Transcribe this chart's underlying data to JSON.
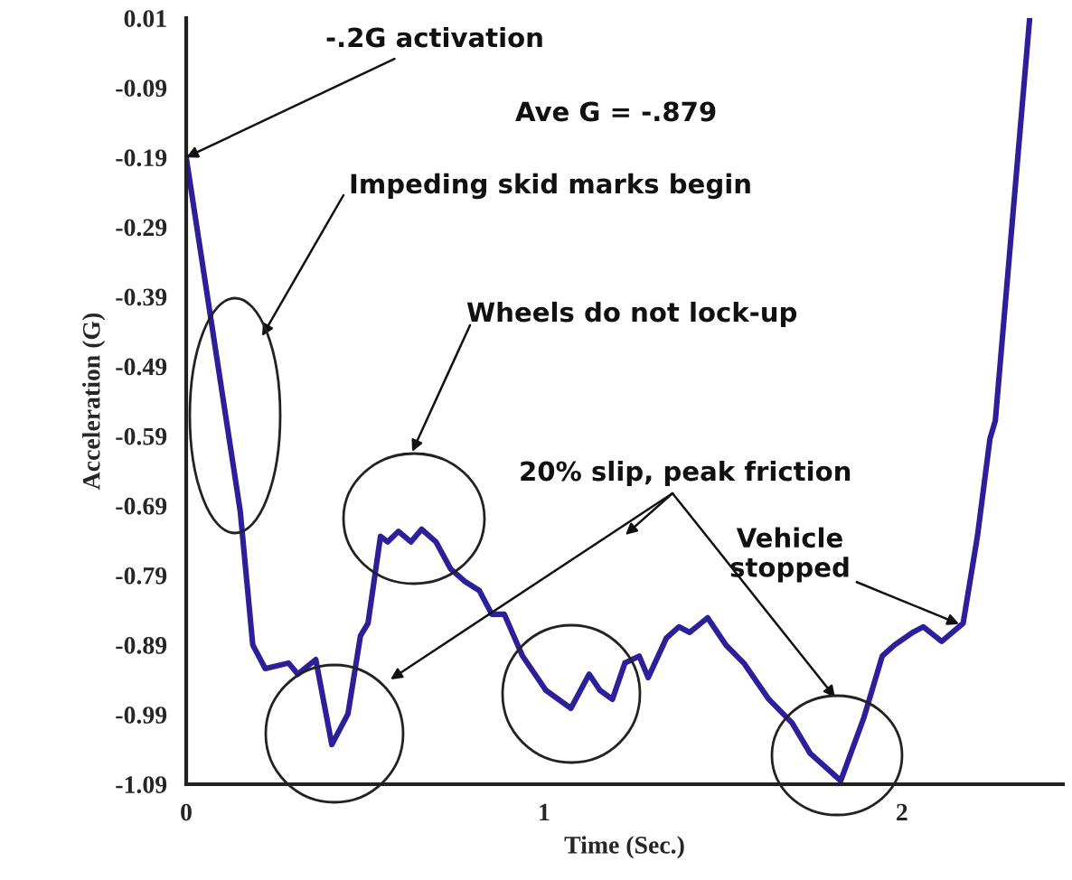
{
  "chart_data": {
    "type": "line",
    "xlabel": "Time (Sec.)",
    "ylabel": "Acceleration (G)",
    "xlim": [
      0,
      2.45
    ],
    "xticks": [
      0,
      1,
      2
    ],
    "ylim": [
      -1.09,
      0.01
    ],
    "yticks": [
      {
        "value": 0.01,
        "label": "0.01"
      },
      {
        "value": -0.09,
        "label": "-0.09"
      },
      {
        "value": -0.19,
        "label": "-0.19"
      },
      {
        "value": -0.29,
        "label": "-0.29"
      },
      {
        "value": -0.39,
        "label": "-0.39"
      },
      {
        "value": -0.49,
        "label": "-0.49"
      },
      {
        "value": -0.59,
        "label": "-0.59"
      },
      {
        "value": -0.69,
        "label": "-0.69"
      },
      {
        "value": -0.79,
        "label": "-0.79"
      },
      {
        "value": -0.89,
        "label": "-0.89"
      },
      {
        "value": -0.99,
        "label": "-0.99"
      },
      {
        "value": -1.09,
        "label": "-1.09"
      }
    ],
    "grid": false,
    "marker": "none",
    "line_style": "solid",
    "series": [
      {
        "color": "#2b1f9a",
        "x": [
          0,
          0.151,
          0.186,
          0.221,
          0.286,
          0.312,
          0.362,
          0.407,
          0.452,
          0.487,
          0.508,
          0.543,
          0.563,
          0.593,
          0.628,
          0.658,
          0.698,
          0.739,
          0.779,
          0.819,
          0.854,
          0.889,
          0.94,
          1.005,
          1.075,
          1.126,
          1.156,
          1.191,
          1.226,
          1.266,
          1.291,
          1.342,
          1.377,
          1.407,
          1.457,
          1.508,
          1.558,
          1.628,
          1.693,
          1.744,
          1.829,
          1.894,
          1.945,
          1.98,
          2.03,
          2.06,
          2.111,
          2.171,
          2.211,
          2.246,
          2.261,
          2.357
        ],
        "values": [
          -0.19,
          -0.698,
          -0.89,
          -0.924,
          -0.916,
          -0.932,
          -0.911,
          -1.033,
          -0.989,
          -0.877,
          -0.859,
          -0.734,
          -0.742,
          -0.727,
          -0.742,
          -0.724,
          -0.742,
          -0.781,
          -0.799,
          -0.812,
          -0.846,
          -0.846,
          -0.906,
          -0.955,
          -0.981,
          -0.932,
          -0.955,
          -0.968,
          -0.916,
          -0.906,
          -0.937,
          -0.88,
          -0.864,
          -0.872,
          -0.851,
          -0.89,
          -0.916,
          -0.968,
          -1.002,
          -1.046,
          -1.085,
          -0.994,
          -0.906,
          -0.89,
          -0.872,
          -0.864,
          -0.885,
          -0.859,
          -0.734,
          -0.594,
          -0.568,
          0.01
        ]
      }
    ],
    "annotations": [
      {
        "text": "-.2G activation",
        "x": 0,
        "y": -0.19
      },
      "Ave G = -.879",
      "Impeding skid marks begin",
      "Wheels do not lock-up",
      "20% slip, peak friction",
      {
        "text": "Vehicle\nstopped",
        "x": 2.16,
        "y": -0.86
      }
    ]
  }
}
